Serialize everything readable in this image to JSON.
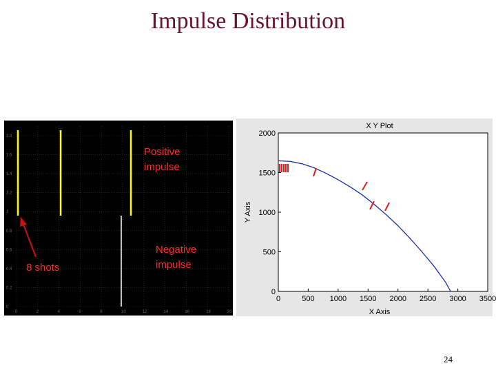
{
  "slide": {
    "title": "Impulse Distribution",
    "page_number": "24"
  },
  "scope": {
    "y_ticks": [
      "1.8",
      "1.6",
      "1.4",
      "1.2",
      "1",
      "0.8",
      "0.6",
      "0.4",
      "0.2",
      "0"
    ],
    "x_ticks": [
      "0",
      "2",
      "4",
      "6",
      "8",
      "10",
      "12",
      "14",
      "16",
      "18",
      "20"
    ],
    "positive_label_line1": "Positive",
    "positive_label_line2": "impulse",
    "negative_label_line1": "Negative",
    "negative_label_line2": "impulse",
    "shots_label": "8 shots",
    "trace_color": "#ffff00"
  },
  "chart_data": {
    "type": "line",
    "title": "X Y Plot",
    "xlabel": "X Axis",
    "ylabel": "Y Axis",
    "xlim": [
      0,
      3500
    ],
    "ylim": [
      0,
      2000
    ],
    "x_ticks": [
      0,
      500,
      1000,
      1500,
      2000,
      2500,
      3000,
      3500
    ],
    "y_ticks": [
      0,
      500,
      1000,
      1500,
      2000
    ],
    "series": [
      {
        "x": [
          0,
          200,
          400,
          600,
          800,
          1000,
          1200,
          1400,
          1600,
          1800,
          2000,
          2200,
          2400,
          2600,
          2800,
          2880
        ],
        "y": [
          1650,
          1640,
          1610,
          1560,
          1490,
          1410,
          1320,
          1220,
          1100,
          970,
          830,
          670,
          500,
          320,
          110,
          0
        ]
      }
    ],
    "line_color": "#1a2fb0",
    "marker_color": "#e02020"
  }
}
